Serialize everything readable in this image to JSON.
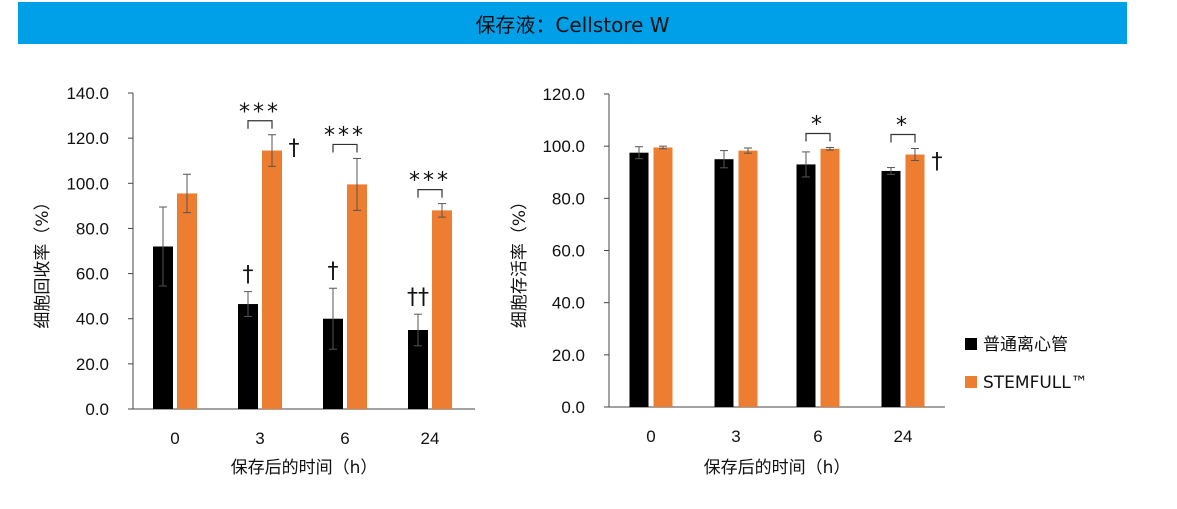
{
  "banner": {
    "title": "保存液：Cellstore W",
    "color": "#00a0e9"
  },
  "legend": [
    {
      "label": "普通离心管",
      "color": "#000000"
    },
    {
      "label": "STEMFULL™",
      "color": "#ed7d31"
    }
  ],
  "chart_data": [
    {
      "type": "bar",
      "xlabel": "保存后的时间（h）",
      "ylabel": "细胞回收率（%）",
      "categories": [
        "0",
        "3",
        "6",
        "24"
      ],
      "ylim": [
        0,
        140
      ],
      "yticks": [
        "0.0",
        "20.0",
        "40.0",
        "60.0",
        "80.0",
        "100.0",
        "120.0",
        "140.0"
      ],
      "series": [
        {
          "name": "普通离心管",
          "color": "#000000",
          "values": [
            72,
            46.5,
            40,
            35
          ],
          "errors": [
            17.5,
            5.5,
            13.5,
            7
          ]
        },
        {
          "name": "STEMFULL™",
          "color": "#ed7d31",
          "values": [
            95.5,
            114.5,
            99.5,
            88
          ],
          "errors": [
            8.5,
            7,
            11.5,
            3
          ]
        }
      ],
      "significance": [
        "",
        "***",
        "***",
        "***"
      ],
      "black_marks": [
        "",
        "†",
        "†",
        "††"
      ],
      "orange_marks": [
        "",
        "†",
        "",
        ""
      ]
    },
    {
      "type": "bar",
      "xlabel": "保存后的时间（h）",
      "ylabel": "细胞存活率（%）",
      "categories": [
        "0",
        "3",
        "6",
        "24"
      ],
      "ylim": [
        0,
        120
      ],
      "yticks": [
        "0.0",
        "20.0",
        "40.0",
        "60.0",
        "80.0",
        "100.0",
        "120.0"
      ],
      "series": [
        {
          "name": "普通离心管",
          "color": "#000000",
          "values": [
            97.5,
            95,
            93,
            90.5
          ],
          "errors": [
            2.3,
            3.3,
            4.8,
            1.3
          ]
        },
        {
          "name": "STEMFULL™",
          "color": "#ed7d31",
          "values": [
            99.5,
            98.3,
            99,
            96.8
          ],
          "errors": [
            0.5,
            1,
            0.5,
            2.3
          ]
        }
      ],
      "significance": [
        "",
        "",
        "*",
        "*"
      ],
      "black_marks": [
        "",
        "",
        "",
        ""
      ],
      "orange_marks": [
        "",
        "",
        "",
        "†"
      ]
    }
  ]
}
